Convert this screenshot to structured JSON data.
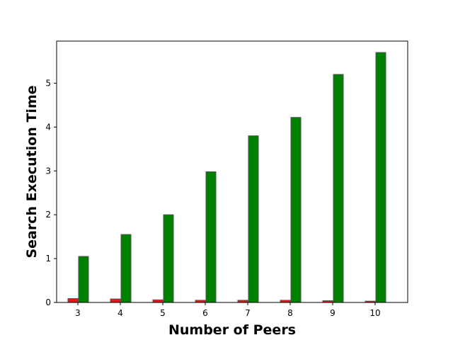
{
  "chart_data": {
    "type": "bar",
    "title": "",
    "xlabel": "Number of Peers",
    "ylabel": "Search Execution Time",
    "categories": [
      "3",
      "4",
      "5",
      "6",
      "7",
      "8",
      "9",
      "10"
    ],
    "series": [
      {
        "color": "#e31a1c",
        "values": [
          0.09,
          0.08,
          0.06,
          0.05,
          0.05,
          0.05,
          0.04,
          0.03
        ]
      },
      {
        "color": "#008000",
        "values": [
          1.05,
          1.55,
          2.0,
          2.98,
          3.8,
          4.22,
          5.2,
          5.7
        ]
      }
    ],
    "ylim": [
      0,
      5.96
    ],
    "yticks": [
      0,
      1,
      2,
      3,
      4,
      5
    ],
    "grid": false,
    "bar_edge_color": "#555555"
  }
}
